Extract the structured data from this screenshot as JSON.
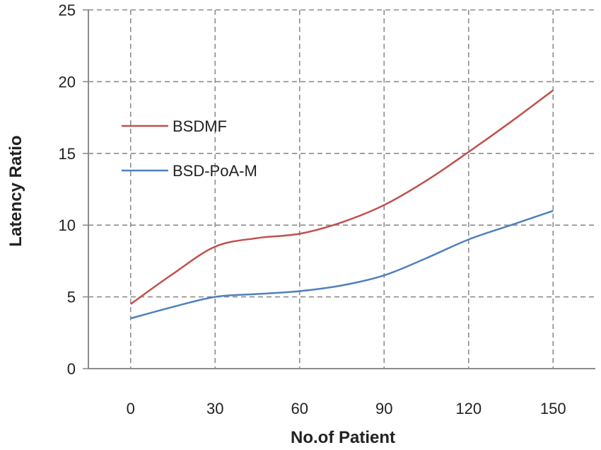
{
  "chart_data": {
    "type": "line",
    "title": "",
    "xlabel": "No.of Patient",
    "ylabel": "Latency Ratio",
    "x": [
      0,
      15,
      30,
      45,
      60,
      75,
      90,
      105,
      120,
      135,
      150
    ],
    "xticks": [
      "0",
      "30",
      "60",
      "90",
      "120",
      "150"
    ],
    "xlim": [
      -15,
      165
    ],
    "ylim": [
      0,
      25
    ],
    "yticks": [
      "0",
      "5",
      "10",
      "15",
      "20",
      "25"
    ],
    "grid": true,
    "legend_position": "upper-left",
    "series": [
      {
        "name": "BSDMF",
        "color": "#c0504d",
        "values": [
          4.5,
          6.6,
          8.5,
          9.1,
          9.4,
          10.2,
          11.4,
          13.1,
          15.1,
          17.2,
          19.4
        ]
      },
      {
        "name": "BSD-PoA-M",
        "color": "#4f81bd",
        "values": [
          3.5,
          4.3,
          5.0,
          5.2,
          5.4,
          5.8,
          6.5,
          7.7,
          9.0,
          10.0,
          11.0
        ]
      }
    ]
  }
}
